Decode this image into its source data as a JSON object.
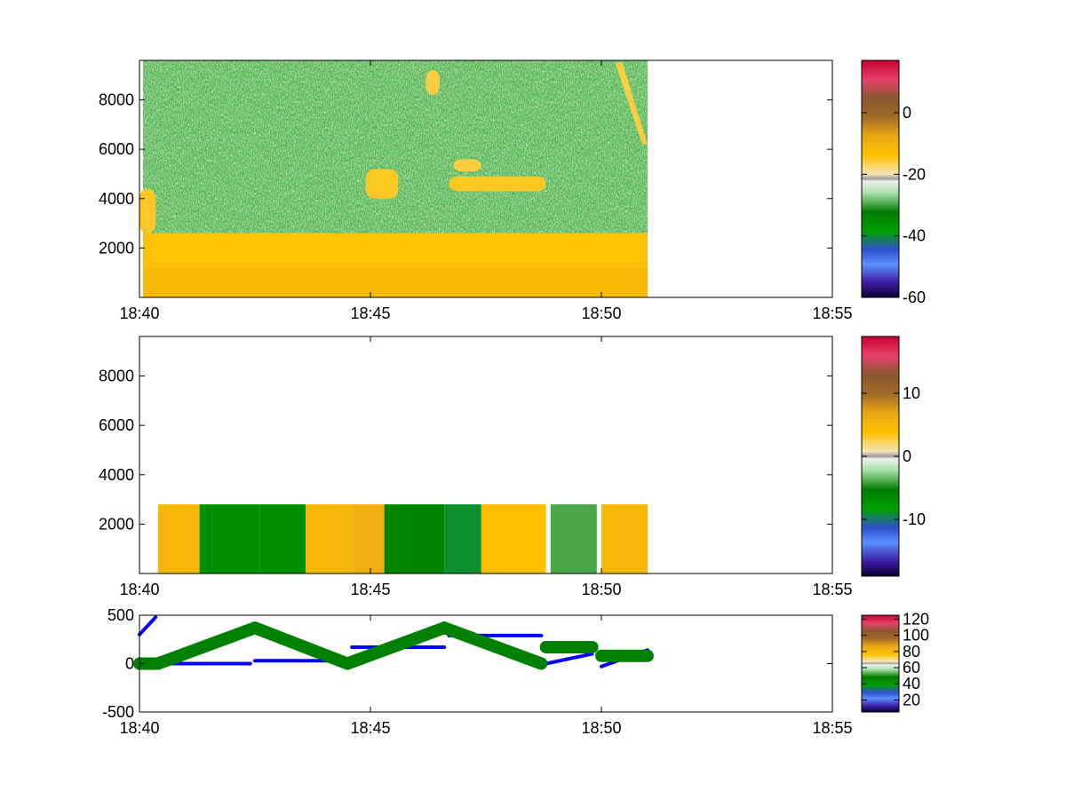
{
  "chart_data": [
    {
      "type": "heatmap",
      "title": "",
      "xlabel": "",
      "ylabel": "",
      "x_ticks": [
        "18:40",
        "18:45",
        "18:50",
        "18:55"
      ],
      "x_tick_minutes": [
        0,
        5,
        10,
        15
      ],
      "xlim_minutes": [
        0,
        15
      ],
      "data_end_minutes": 11.0,
      "ylim": [
        0,
        9600
      ],
      "y_ticks": [
        2000,
        4000,
        6000,
        8000
      ],
      "colorbar": {
        "range": [
          -60,
          17
        ],
        "ticks": [
          0,
          -20,
          -40,
          -60
        ]
      },
      "features": [
        {
          "kind": "layer",
          "t": [
            0,
            11.0
          ],
          "y": [
            0,
            2600
          ],
          "level": -14
        },
        {
          "kind": "plume",
          "t": [
            0,
            0.35
          ],
          "y": [
            2600,
            4400
          ],
          "level": -15
        },
        {
          "kind": "blob",
          "t": [
            4.9,
            5.6
          ],
          "y": [
            4000,
            5200
          ],
          "level": -15
        },
        {
          "kind": "blob",
          "t": [
            6.7,
            8.8
          ],
          "y": [
            4300,
            4900
          ],
          "level": -15
        },
        {
          "kind": "blob",
          "t": [
            6.8,
            7.4
          ],
          "y": [
            5100,
            5600
          ],
          "level": -16
        },
        {
          "kind": "blob",
          "t": [
            6.2,
            6.5
          ],
          "y": [
            8200,
            9200
          ],
          "level": -16
        },
        {
          "kind": "streak",
          "t": [
            10.3,
            11.0
          ],
          "y": [
            6200,
            9500
          ],
          "level": -16
        }
      ],
      "grid": false
    },
    {
      "type": "heatmap",
      "title": "",
      "xlabel": "",
      "ylabel": "",
      "x_ticks": [
        "18:40",
        "18:45",
        "18:50",
        "18:55"
      ],
      "x_tick_minutes": [
        0,
        5,
        10,
        15
      ],
      "xlim_minutes": [
        0,
        15
      ],
      "data_end_minutes": 11.0,
      "ylim": [
        0,
        9600
      ],
      "y_ticks": [
        2000,
        4000,
        6000,
        8000
      ],
      "colorbar": {
        "range": [
          -19,
          19
        ],
        "ticks": [
          10,
          0,
          -10
        ]
      },
      "segments": [
        {
          "t": [
            0.4,
            1.3
          ],
          "level": 5
        },
        {
          "t": [
            1.3,
            2.6
          ],
          "level": -7
        },
        {
          "t": [
            2.6,
            3.6
          ],
          "level": -7
        },
        {
          "t": [
            3.6,
            4.6
          ],
          "level": 5
        },
        {
          "t": [
            4.6,
            5.3
          ],
          "level": 6
        },
        {
          "t": [
            5.3,
            6.6
          ],
          "level": -6
        },
        {
          "t": [
            6.6,
            7.4
          ],
          "level": -9
        },
        {
          "t": [
            7.4,
            8.8
          ],
          "level": 4
        },
        {
          "t": [
            8.9,
            9.9
          ],
          "level": -4
        },
        {
          "t": [
            10.0,
            11.0
          ],
          "level": 5
        }
      ],
      "layer_top": 2800,
      "grid": false
    },
    {
      "type": "line",
      "title": "",
      "xlabel": "",
      "ylabel": "",
      "x_ticks": [
        "18:40",
        "18:45",
        "18:50",
        "18:55"
      ],
      "x_tick_minutes": [
        0,
        5,
        10,
        15
      ],
      "xlim_minutes": [
        0,
        15
      ],
      "ylim": [
        -500,
        500
      ],
      "y_ticks": [
        500,
        0,
        -500
      ],
      "colorbar": {
        "range": [
          5,
          125
        ],
        "ticks": [
          120,
          100,
          80,
          60,
          40,
          20
        ]
      },
      "series": [
        {
          "color": "#0000ff",
          "segments": [
            [
              [
                0.0,
                300
              ],
              [
                0.35,
                480
              ]
            ],
            [
              [
                0.4,
                0
              ],
              [
                2.4,
                0
              ]
            ],
            [
              [
                2.5,
                30
              ],
              [
                4.5,
                30
              ]
            ],
            [
              [
                4.6,
                170
              ],
              [
                6.6,
                170
              ]
            ],
            [
              [
                6.7,
                290
              ],
              [
                8.7,
                290
              ]
            ],
            [
              [
                8.8,
                0
              ],
              [
                9.8,
                100
              ]
            ],
            [
              [
                10.0,
                -30
              ],
              [
                11.0,
                140
              ]
            ]
          ]
        },
        {
          "color": "#008000",
          "segments": [
            [
              [
                0.0,
                0
              ],
              [
                0.4,
                0
              ]
            ],
            [
              [
                0.4,
                0
              ],
              [
                2.5,
                370
              ]
            ],
            [
              [
                2.5,
                370
              ],
              [
                4.5,
                0
              ]
            ],
            [
              [
                4.5,
                0
              ],
              [
                6.6,
                370
              ]
            ],
            [
              [
                6.6,
                370
              ],
              [
                8.7,
                0
              ]
            ],
            [
              [
                8.8,
                170
              ],
              [
                9.8,
                170
              ]
            ],
            [
              [
                10.0,
                80
              ],
              [
                11.0,
                80
              ]
            ]
          ]
        }
      ],
      "grid": false
    }
  ]
}
